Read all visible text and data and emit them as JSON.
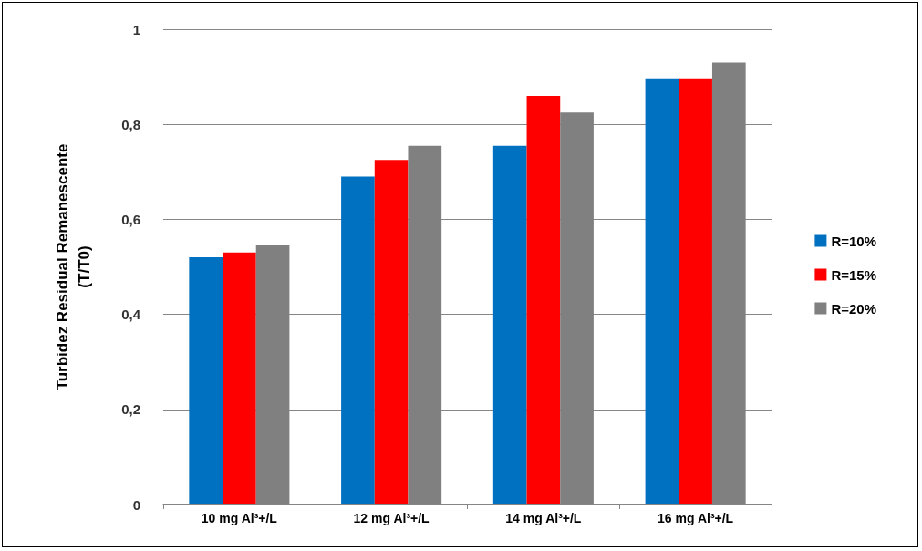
{
  "chart_data": {
    "type": "bar",
    "ylabel": "Turbidez Residual Remanescente\n(T/T0)",
    "categories": [
      "10 mg Al³+/L",
      "12 mg Al³+/L",
      "14 mg Al³+/L",
      "16 mg Al³+/L"
    ],
    "series": [
      {
        "name": "R=10%",
        "color": "#0070c0",
        "values": [
          0.52,
          0.69,
          0.755,
          0.895
        ]
      },
      {
        "name": "R=15%",
        "color": "#ff0000",
        "values": [
          0.53,
          0.725,
          0.86,
          0.895
        ]
      },
      {
        "name": "R=20%",
        "color": "#808080",
        "values": [
          0.545,
          0.755,
          0.825,
          0.93
        ]
      }
    ],
    "ylim": [
      0,
      1
    ],
    "yticks": [
      0,
      {
        "value": 0.2,
        "label": "0,2"
      },
      {
        "value": 0.4,
        "label": "0,4"
      },
      {
        "value": 0.6,
        "label": "0,6"
      },
      {
        "value": 0.8,
        "label": "0,8"
      },
      1
    ],
    "grid": "y",
    "legend": "right"
  }
}
